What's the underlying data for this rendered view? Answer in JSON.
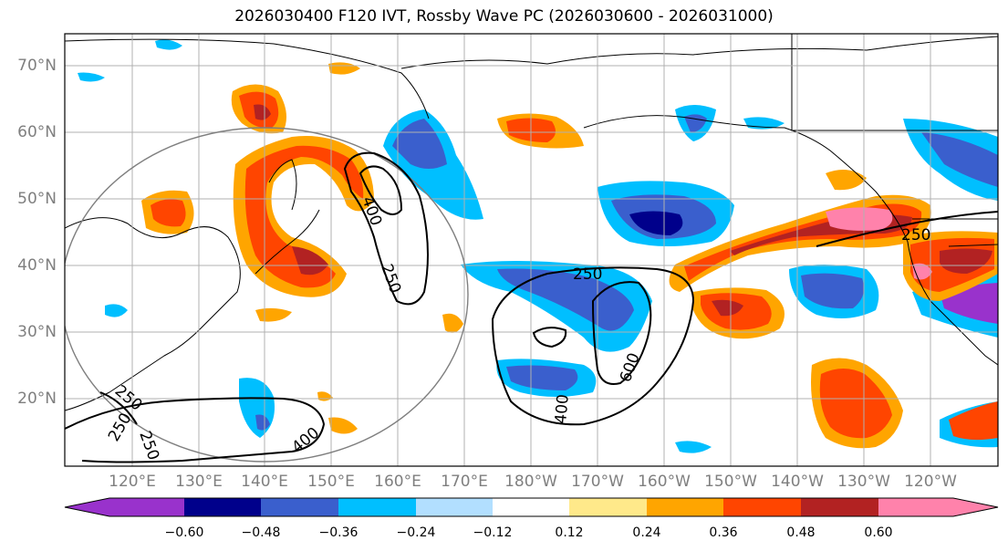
{
  "title": "2026030400 F120 IVT, Rossby Wave PC (2026030600 - 2026031000)",
  "lat_labels": [
    "70°N",
    "60°N",
    "50°N",
    "40°N",
    "30°N",
    "20°N"
  ],
  "lon_labels": [
    "120°E",
    "130°E",
    "140°E",
    "150°E",
    "160°E",
    "170°E",
    "180°W",
    "170°W",
    "160°W",
    "150°W",
    "140°W",
    "130°W",
    "120°W"
  ],
  "contour_labels": [
    "250",
    "400",
    "250",
    "250",
    "600",
    "400",
    "250",
    "400",
    "250",
    "250"
  ],
  "colorbar": {
    "ticks": [
      "−0.60",
      "−0.48",
      "−0.36",
      "−0.24",
      "−0.12",
      "0.12",
      "0.24",
      "0.36",
      "0.48",
      "0.60"
    ],
    "colors": [
      "#9932cc",
      "#00008b",
      "#3a5fcd",
      "#00bfff",
      "#b2dfff",
      "#ffffff",
      "#ffe98a",
      "#ffa500",
      "#ff4500",
      "#b22222",
      "#ff82ab"
    ]
  },
  "colors": {
    "neg_strong": "#00008b",
    "neg_mid": "#3a5fcd",
    "neg_light": "#00bfff",
    "neg_pale": "#b2dfff",
    "pos_pale": "#ffe98a",
    "pos_light": "#ffa500",
    "pos_mid": "#ff4500",
    "pos_strong": "#b22222",
    "pos_max": "#ff82ab",
    "neg_max": "#9932cc"
  }
}
